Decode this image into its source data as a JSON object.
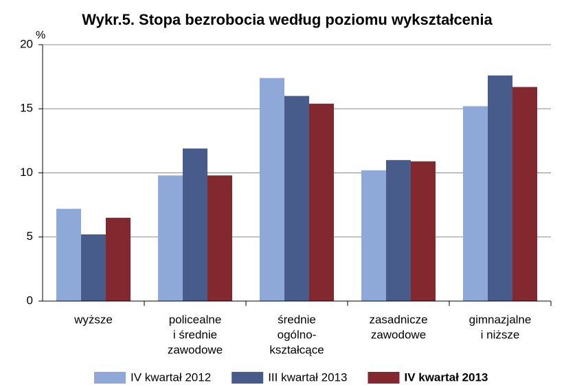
{
  "chart_data": {
    "type": "bar",
    "title": "Wykr.5. Stopa bezrobocia według poziomu wykształcenia",
    "y_label": "%",
    "categories": [
      [
        "wyższe"
      ],
      [
        "policealne",
        "i średnie",
        "zawodowe"
      ],
      [
        "średnie",
        "ogólno-",
        "kształcące"
      ],
      [
        "zasadnicze",
        "zawodowe"
      ],
      [
        "gimnazjalne",
        "i niższe"
      ]
    ],
    "series": [
      {
        "name": "IV kwartał 2012",
        "color": "#8ea9d8",
        "values": [
          7.2,
          9.8,
          17.4,
          10.2,
          15.2
        ]
      },
      {
        "name": "III kwartał 2013",
        "color": "#475c8a",
        "values": [
          5.2,
          11.9,
          16.0,
          11.0,
          17.6
        ]
      },
      {
        "name": "IV kwartał 2013",
        "color": "#84282f",
        "values": [
          6.5,
          9.8,
          15.4,
          10.9,
          16.7
        ],
        "bold": true
      }
    ],
    "ylim": [
      0,
      20
    ],
    "yticks": [
      0,
      5,
      10,
      15,
      20
    ],
    "grid": true,
    "legend": "bottom"
  }
}
